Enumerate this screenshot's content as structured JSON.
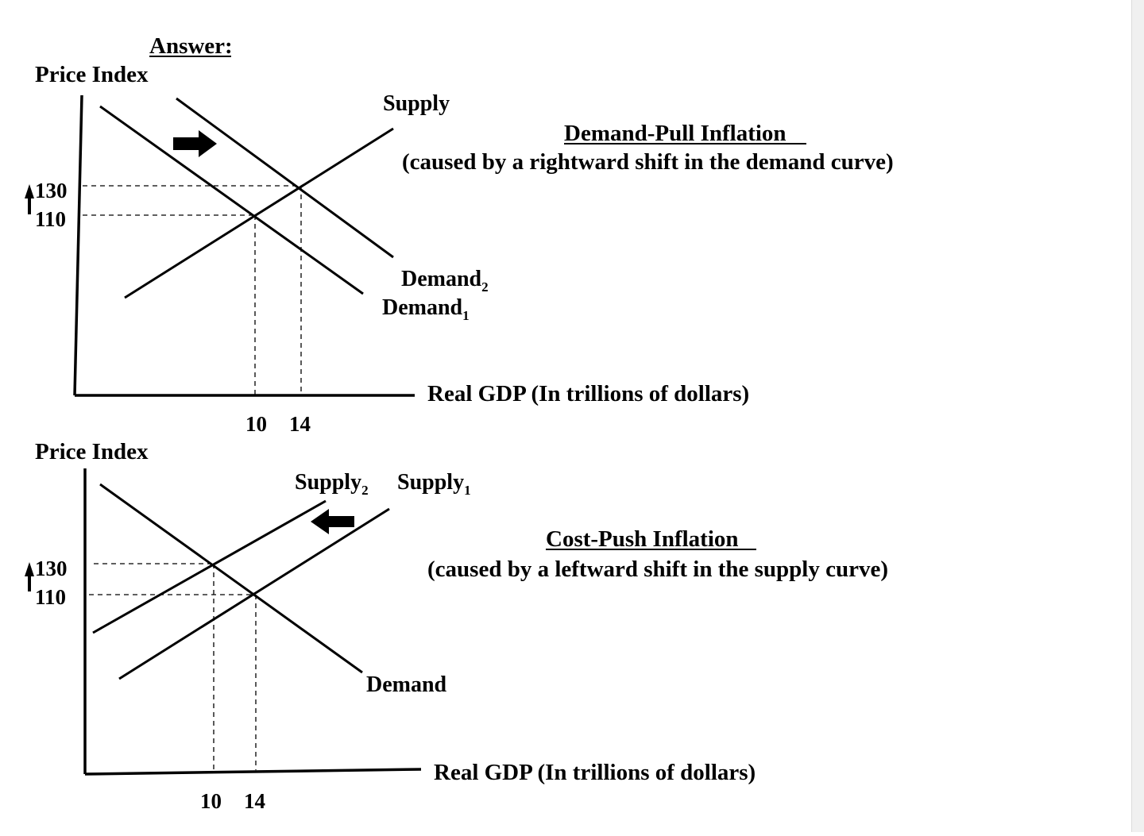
{
  "answer_label": "Answer:",
  "colors": {
    "ink": "#000000",
    "background": "#ffffff",
    "scrollbar": "#f0f0f0"
  },
  "demand_pull": {
    "y_axis_label": "Price Index",
    "x_axis_label": "Real GDP (In trillions of dollars)",
    "price_ticks": [
      "130",
      "110"
    ],
    "gdp_ticks": [
      "10",
      "14"
    ],
    "supply_label": "Supply",
    "demand2_label": "Demand",
    "demand2_sub": "2",
    "demand1_label": "Demand",
    "demand1_sub": "1",
    "title": "Demand-Pull Inflation",
    "caption": "(caused by a rightward shift in the demand curve)",
    "shift_arrow_icon": "right-arrow-icon",
    "price_up_icon": "up-arrow-icon"
  },
  "cost_push": {
    "y_axis_label": "Price Index",
    "x_axis_label": "Real GDP (In trillions of dollars)",
    "price_ticks": [
      "130",
      "110"
    ],
    "gdp_ticks": [
      "10",
      "14"
    ],
    "supply2_label": "Supply",
    "supply2_sub": "2",
    "supply1_label": "Supply",
    "supply1_sub": "1",
    "demand_label": "Demand",
    "title": "Cost-Push Inflation",
    "caption": "(caused by a leftward shift in the supply curve)",
    "shift_arrow_icon": "left-arrow-icon",
    "price_up_icon": "up-arrow-icon"
  }
}
